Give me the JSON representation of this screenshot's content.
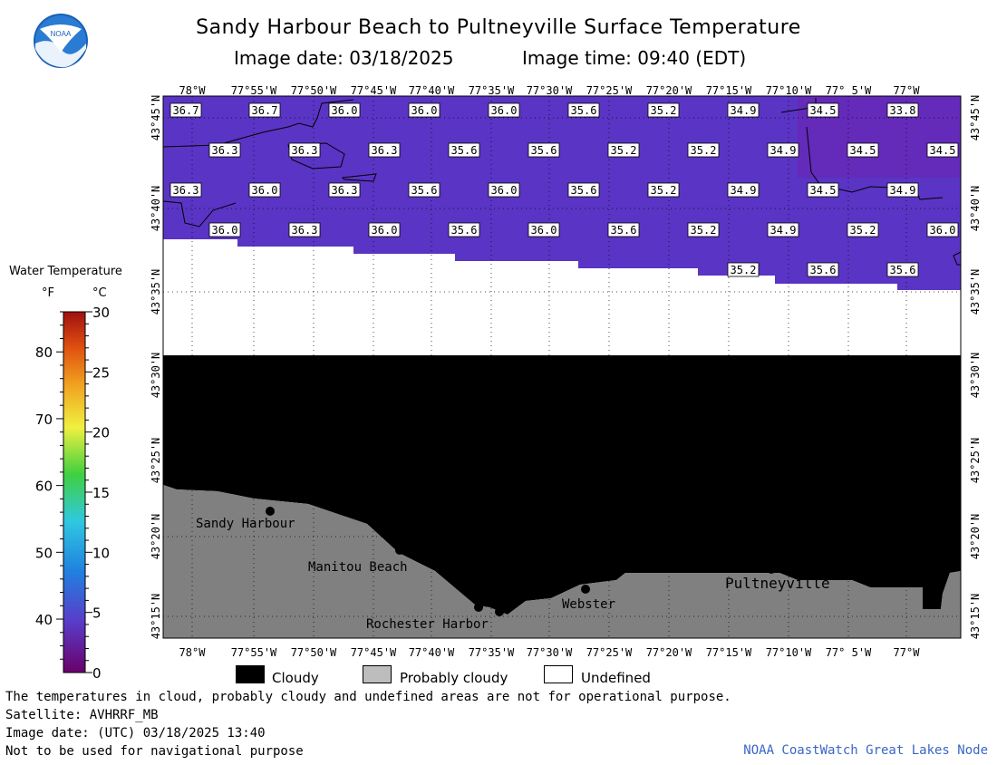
{
  "header": {
    "title": "Sandy Harbour Beach to Pultneyville Surface Temperature",
    "image_date": "Image date: 03/18/2025",
    "image_time": "Image time: 09:40 (EDT)",
    "logo_text": "NOAA"
  },
  "map": {
    "lon_labels": [
      "78°W",
      "77°55'W",
      "77°50'W",
      "77°45'W",
      "77°40'W",
      "77°35'W",
      "77°30'W",
      "77°25'W",
      "77°20'W",
      "77°15'W",
      "77°10'W",
      "77° 5'W",
      "77°W"
    ],
    "lat_labels": [
      "43°45'N",
      "43°40'N",
      "43°35'N",
      "43°30'N",
      "43°25'N",
      "43°20'N",
      "43°15'N"
    ],
    "temperatures": [
      {
        "row": 0,
        "values": [
          "36.7",
          "36.7",
          "36.0",
          "36.0",
          "36.0",
          "35.6",
          "35.2",
          "34.9",
          "34.5",
          "33.8"
        ]
      },
      {
        "row": 1,
        "values": [
          "36.3",
          "36.3",
          "36.3",
          "35.6",
          "35.6",
          "35.2",
          "35.2",
          "34.9",
          "34.5",
          "34.5"
        ]
      },
      {
        "row": 2,
        "values": [
          "36.3",
          "36.0",
          "36.3",
          "35.6",
          "36.0",
          "35.6",
          "35.2",
          "34.9",
          "34.5",
          "34.9"
        ]
      },
      {
        "row": 3,
        "values": [
          "36.0",
          "36.3",
          "36.0",
          "35.6",
          "36.0",
          "35.6",
          "35.2",
          "34.9",
          "35.2",
          "36.0"
        ]
      },
      {
        "row": 4,
        "values": [
          "35.2",
          "35.6",
          "35.6"
        ]
      }
    ],
    "places": [
      "Sandy Harbour",
      "Manitou Beach",
      "Rochester Harbor",
      "Webster",
      "Pultneyville"
    ],
    "colors": {
      "water": "#5a34c4",
      "cloud": "#000000",
      "probably_cloudy": "#808080",
      "undefined": "#ffffff"
    }
  },
  "legend": {
    "title": "Water Temperature",
    "unit_f": "°F",
    "unit_c": "°C",
    "f_ticks": [
      "80",
      "70",
      "60",
      "50",
      "40"
    ],
    "c_ticks": [
      "30",
      "25",
      "20",
      "15",
      "10",
      "5",
      "0"
    ]
  },
  "key": {
    "cloudy": "Cloudy",
    "probably_cloudy": "Probably cloudy",
    "undefined": "Undefined"
  },
  "footer": {
    "disclaimer": "The temperatures in cloud, probably cloudy and undefined areas are not for operational purpose.",
    "satellite": "Satellite: AVHRRF_MB",
    "utc_date": "Image date: (UTC) 03/18/2025  13:40",
    "nav_warning": "Not to be used for navigational purpose",
    "credit": "NOAA CoastWatch Great Lakes Node"
  }
}
